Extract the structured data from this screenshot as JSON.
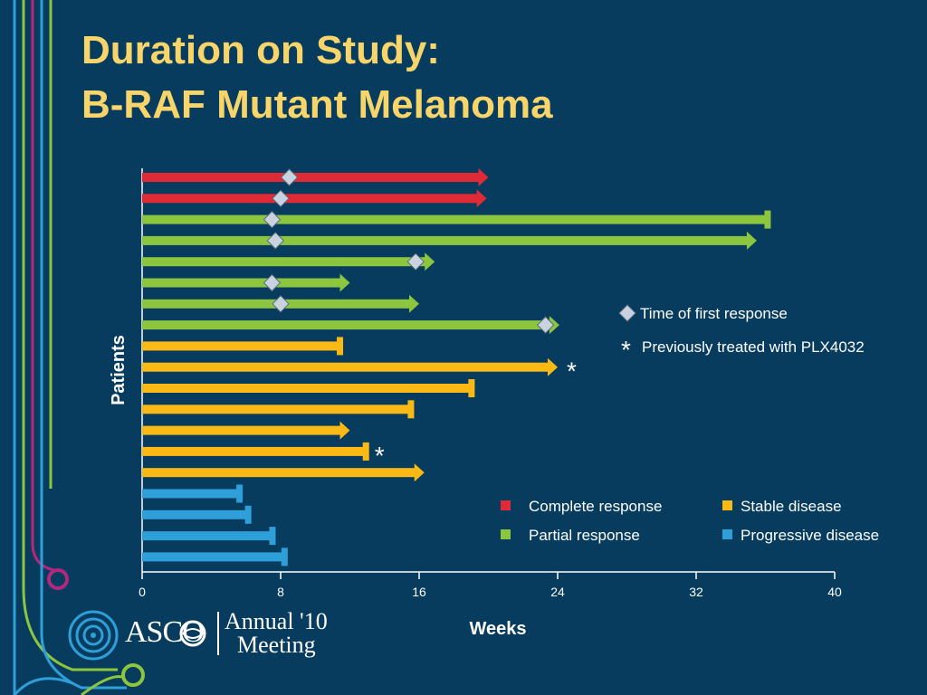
{
  "slide": {
    "title_line1": "Duration on Study:",
    "title_line2": "B-RAF Mutant Melanoma",
    "logo": {
      "org": "ASCO",
      "event_line1": "Annual '10",
      "event_line2": "Meeting"
    }
  },
  "colors": {
    "background": "#073c5e",
    "title": "#f7d56a",
    "complete_response": "#e02a36",
    "partial_response": "#8cc63f",
    "stable_disease": "#fbb916",
    "progressive_disease": "#2e9fd9",
    "marker": "#c9d3e0"
  },
  "chart_data": {
    "type": "bar",
    "orientation": "horizontal",
    "xlabel": "Weeks",
    "ylabel": "Patients",
    "xlim": [
      0,
      40
    ],
    "xticks": [
      0,
      8,
      16,
      24,
      32,
      40
    ],
    "legend": [
      {
        "key": "complete_response",
        "label": "Complete response"
      },
      {
        "key": "stable_disease",
        "label": "Stable disease"
      },
      {
        "key": "partial_response",
        "label": "Partial response"
      },
      {
        "key": "progressive_disease",
        "label": "Progressive disease"
      }
    ],
    "annotations": {
      "first_response_label": "Time of first response",
      "prior_plx_label": "Previously treated with PLX4032",
      "asterisk": "*"
    },
    "patients": [
      {
        "category": "complete_response",
        "weeks": 20.0,
        "ongoing": true,
        "first_response": 8.5
      },
      {
        "category": "complete_response",
        "weeks": 19.9,
        "ongoing": true,
        "first_response": 8.0
      },
      {
        "category": "partial_response",
        "weeks": 36.1,
        "ongoing": false,
        "first_response": 7.5
      },
      {
        "category": "partial_response",
        "weeks": 35.5,
        "ongoing": true,
        "first_response": 7.7
      },
      {
        "category": "partial_response",
        "weeks": 16.9,
        "ongoing": true,
        "first_response": 15.8
      },
      {
        "category": "partial_response",
        "weeks": 12.0,
        "ongoing": true,
        "first_response": 7.5
      },
      {
        "category": "partial_response",
        "weeks": 16.0,
        "ongoing": true,
        "first_response": 8.0
      },
      {
        "category": "partial_response",
        "weeks": 24.1,
        "ongoing": true,
        "first_response": 23.3
      },
      {
        "category": "stable_disease",
        "weeks": 11.4,
        "ongoing": false
      },
      {
        "category": "stable_disease",
        "weeks": 24.0,
        "ongoing": true,
        "prior_plx": true
      },
      {
        "category": "stable_disease",
        "weeks": 19.0,
        "ongoing": false
      },
      {
        "category": "stable_disease",
        "weeks": 15.5,
        "ongoing": false
      },
      {
        "category": "stable_disease",
        "weeks": 12.0,
        "ongoing": true
      },
      {
        "category": "stable_disease",
        "weeks": 12.9,
        "ongoing": false,
        "prior_plx": true
      },
      {
        "category": "stable_disease",
        "weeks": 16.3,
        "ongoing": true
      },
      {
        "category": "progressive_disease",
        "weeks": 5.6,
        "ongoing": false
      },
      {
        "category": "progressive_disease",
        "weeks": 6.1,
        "ongoing": false
      },
      {
        "category": "progressive_disease",
        "weeks": 7.5,
        "ongoing": false
      },
      {
        "category": "progressive_disease",
        "weeks": 8.2,
        "ongoing": false
      }
    ]
  }
}
